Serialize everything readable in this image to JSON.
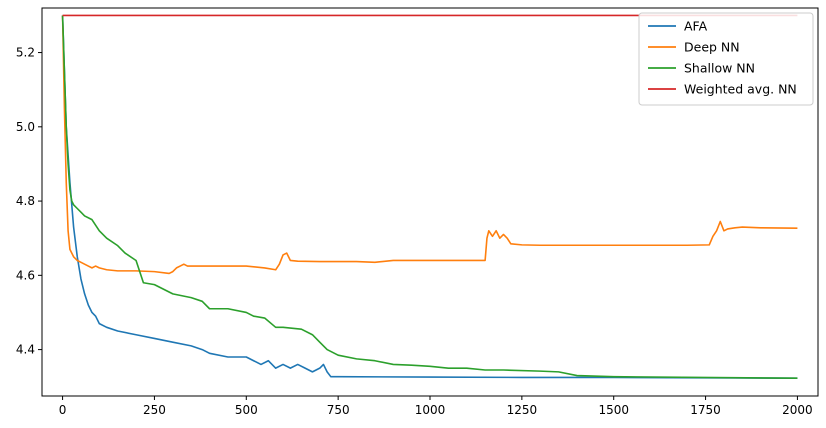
{
  "chart_data": {
    "type": "line",
    "xlim": [
      -56,
      2056
    ],
    "ylim": [
      4.275,
      5.32
    ],
    "x_ticks": [
      0,
      250,
      500,
      750,
      1000,
      1250,
      1500,
      1750,
      2000
    ],
    "y_ticks": [
      4.4,
      4.6,
      4.8,
      5.0,
      5.2
    ],
    "legend_position": "top-right",
    "grid": false,
    "series": [
      {
        "name": "AFA",
        "color": "#1f77b4",
        "x": [
          0,
          5,
          10,
          20,
          30,
          40,
          50,
          60,
          70,
          80,
          90,
          100,
          120,
          150,
          200,
          250,
          300,
          350,
          380,
          400,
          450,
          500,
          520,
          540,
          560,
          580,
          600,
          620,
          640,
          660,
          680,
          700,
          710,
          720,
          730,
          750,
          1000,
          1250,
          1500,
          1750,
          2000
        ],
        "y": [
          5.3,
          5.15,
          5.0,
          4.85,
          4.73,
          4.65,
          4.59,
          4.55,
          4.52,
          4.5,
          4.49,
          4.47,
          4.46,
          4.45,
          4.44,
          4.43,
          4.42,
          4.41,
          4.4,
          4.39,
          4.38,
          4.38,
          4.37,
          4.36,
          4.37,
          4.35,
          4.36,
          4.35,
          4.36,
          4.35,
          4.34,
          4.35,
          4.36,
          4.34,
          4.327,
          4.327,
          4.326,
          4.325,
          4.325,
          4.324,
          4.323
        ]
      },
      {
        "name": "Deep NN",
        "color": "#ff7f0e",
        "x": [
          0,
          5,
          10,
          15,
          20,
          30,
          40,
          50,
          60,
          70,
          80,
          90,
          100,
          120,
          150,
          200,
          250,
          290,
          300,
          310,
          320,
          330,
          340,
          400,
          500,
          550,
          580,
          590,
          600,
          610,
          620,
          640,
          700,
          800,
          850,
          900,
          1000,
          1100,
          1150,
          1155,
          1160,
          1170,
          1180,
          1190,
          1200,
          1210,
          1220,
          1250,
          1300,
          1500,
          1700,
          1760,
          1770,
          1780,
          1790,
          1800,
          1810,
          1830,
          1850,
          1900,
          2000
        ],
        "y": [
          5.3,
          5.05,
          4.85,
          4.72,
          4.67,
          4.65,
          4.64,
          4.635,
          4.63,
          4.625,
          4.62,
          4.625,
          4.62,
          4.615,
          4.612,
          4.612,
          4.61,
          4.605,
          4.61,
          4.62,
          4.625,
          4.63,
          4.625,
          4.625,
          4.625,
          4.62,
          4.615,
          4.63,
          4.655,
          4.66,
          4.64,
          4.638,
          4.637,
          4.637,
          4.635,
          4.64,
          4.64,
          4.64,
          4.64,
          4.7,
          4.72,
          4.705,
          4.72,
          4.7,
          4.71,
          4.7,
          4.685,
          4.682,
          4.681,
          4.681,
          4.681,
          4.682,
          4.705,
          4.72,
          4.745,
          4.72,
          4.725,
          4.728,
          4.73,
          4.728,
          4.727
        ]
      },
      {
        "name": "Shallow NN",
        "color": "#2ca02c",
        "x": [
          0,
          5,
          10,
          15,
          20,
          25,
          30,
          40,
          50,
          60,
          80,
          100,
          120,
          150,
          170,
          200,
          210,
          220,
          250,
          300,
          350,
          380,
          400,
          450,
          500,
          520,
          550,
          580,
          600,
          650,
          680,
          700,
          720,
          750,
          800,
          850,
          900,
          950,
          1000,
          1050,
          1100,
          1150,
          1200,
          1300,
          1350,
          1400,
          1500,
          2000
        ],
        "y": [
          5.3,
          5.15,
          5.0,
          4.9,
          4.83,
          4.8,
          4.79,
          4.78,
          4.77,
          4.76,
          4.75,
          4.72,
          4.7,
          4.68,
          4.66,
          4.64,
          4.61,
          4.58,
          4.575,
          4.55,
          4.54,
          4.53,
          4.51,
          4.51,
          4.5,
          4.49,
          4.485,
          4.46,
          4.46,
          4.455,
          4.44,
          4.42,
          4.4,
          4.385,
          4.375,
          4.37,
          4.36,
          4.358,
          4.355,
          4.35,
          4.35,
          4.345,
          4.345,
          4.342,
          4.34,
          4.33,
          4.327,
          4.323
        ]
      },
      {
        "name": "Weighted avg. NN",
        "color": "#d62728",
        "x": [
          0,
          500,
          1000,
          1500,
          2000
        ],
        "y": [
          5.3,
          5.3,
          5.3,
          5.3,
          5.3
        ]
      }
    ]
  }
}
